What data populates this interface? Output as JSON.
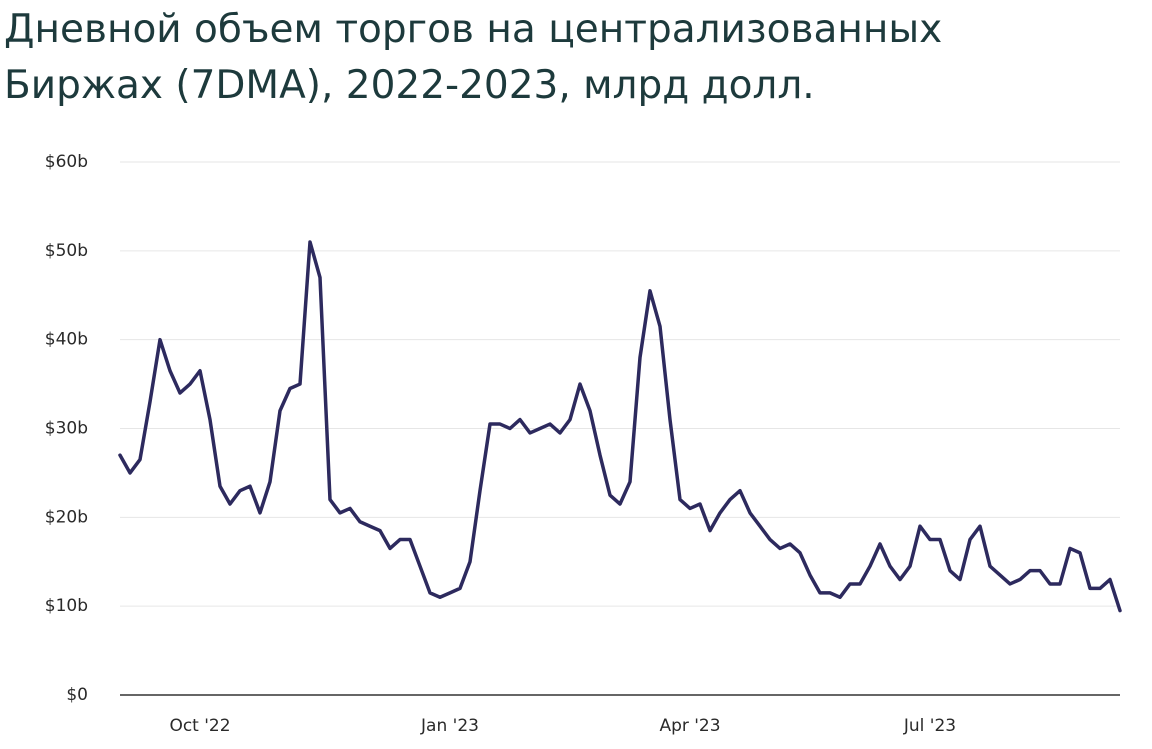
{
  "chart_data": {
    "type": "line",
    "title": "Дневной объем торгов на централизованных Биржах (7DMA), 2022-2023, млрд долл.",
    "categories": [
      null,
      null,
      null,
      null,
      null,
      null,
      null,
      null,
      "Oct '22",
      null,
      null,
      null,
      null,
      null,
      null,
      null,
      null,
      null,
      null,
      null,
      null,
      null,
      null,
      null,
      null,
      null,
      null,
      null,
      null,
      null,
      null,
      null,
      null,
      "Jan '23",
      null,
      null,
      null,
      null,
      null,
      null,
      null,
      null,
      null,
      null,
      null,
      null,
      null,
      null,
      null,
      null,
      null,
      null,
      null,
      null,
      null,
      null,
      null,
      "Apr '23",
      null,
      null,
      null,
      null,
      null,
      null,
      null,
      null,
      null,
      null,
      null,
      null,
      null,
      null,
      null,
      null,
      null,
      null,
      null,
      null,
      null,
      null,
      null,
      "Jul '23",
      null,
      null,
      null,
      null,
      null,
      null,
      null,
      null,
      null,
      null,
      null,
      null,
      null,
      null,
      null,
      null,
      null,
      null,
      null
    ],
    "series": [
      {
        "color": "#2d2a5e",
        "values": [
          27,
          25,
          26.5,
          33,
          40,
          36.5,
          34,
          35,
          36.5,
          31,
          23.5,
          21.5,
          23,
          23.5,
          20.5,
          24,
          32,
          34.5,
          35,
          51,
          47,
          22,
          20.5,
          21,
          19.5,
          19,
          18.5,
          16.5,
          17.5,
          17.5,
          14.5,
          11.5,
          11,
          11.5,
          12,
          15,
          23,
          30.5,
          30.5,
          30,
          31,
          29.5,
          30,
          30.5,
          29.5,
          31,
          35,
          32,
          27,
          22.5,
          21.5,
          24,
          38,
          45.5,
          41.5,
          31,
          22,
          21,
          21.5,
          18.5,
          20.5,
          22,
          23,
          20.5,
          19,
          17.5,
          16.5,
          17,
          16,
          13.5,
          11.5,
          11.5,
          11,
          12.5,
          12.5,
          14.5,
          17,
          14.5,
          13,
          14.5,
          19,
          17.5,
          17.5,
          14,
          13,
          17.5,
          19,
          14.5,
          13.5,
          12.5,
          13,
          14,
          14,
          12.5,
          12.5,
          16.5,
          16,
          12,
          12,
          13,
          9.5
        ]
      }
    ],
    "ylim": [
      0,
      60
    ],
    "yticks": [
      {
        "value": 0,
        "label": "$0"
      },
      {
        "value": 10,
        "label": "$10b"
      },
      {
        "value": 20,
        "label": "$20b"
      },
      {
        "value": 30,
        "label": "$30b"
      },
      {
        "value": 40,
        "label": "$40b"
      },
      {
        "value": 50,
        "label": "$50b"
      },
      {
        "value": 60,
        "label": "$60b"
      }
    ],
    "grid": true
  }
}
